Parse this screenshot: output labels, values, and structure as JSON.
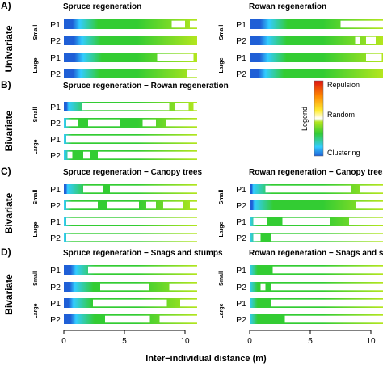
{
  "figure": {
    "xlabel": "Inter−individual distance (m)",
    "x_ticks": [
      "0",
      "5",
      "10"
    ]
  },
  "legend": {
    "title": "Legend",
    "top": "Repulsion",
    "middle": "Random",
    "bottom": "Clustering"
  },
  "colors": {
    "clustering": "#1f5fd6",
    "cyan": "#33ccff",
    "random_green": "#33cc33",
    "yellow_green": "#b4e61e",
    "yellow": "#ffee33",
    "orange": "#ff8800",
    "repulsion": "#dd1111"
  },
  "chart_data": {
    "type": "heatmap",
    "x_range": [
      0,
      11
    ],
    "color_scale": [
      "Clustering",
      "Random",
      "Repulsion"
    ],
    "panels": [
      {
        "section": "A)",
        "method": "Univariate",
        "title": "Spruce regeneration",
        "col": 0,
        "rows": [
          {
            "size": "Small",
            "plot": "P1",
            "clustering_end": 1.3,
            "white": [
              [
                8.9,
                10.0
              ],
              [
                10.4,
                11.0
              ]
            ]
          },
          {
            "size": "Small",
            "plot": "P2",
            "clustering_end": 1.5,
            "white": []
          },
          {
            "size": "Large",
            "plot": "P1",
            "clustering_end": 1.6,
            "white": [
              [
                7.7,
                10.7
              ]
            ]
          },
          {
            "size": "Large",
            "plot": "P2",
            "clustering_end": 1.4,
            "white": [
              [
                10.2,
                11.0
              ]
            ]
          }
        ]
      },
      {
        "section": "A)",
        "method": "Univariate",
        "title": "Rowan regeneration",
        "col": 1,
        "rows": [
          {
            "size": "Small",
            "plot": "P1",
            "clustering_end": 1.6,
            "white": [
              [
                7.5,
                11.0
              ]
            ]
          },
          {
            "size": "Small",
            "plot": "P2",
            "clustering_end": 1.5,
            "white": [
              [
                8.7,
                9.1
              ],
              [
                9.6,
                10.4
              ]
            ]
          },
          {
            "size": "Large",
            "plot": "P1",
            "clustering_end": 1.5,
            "white": [
              [
                9.6,
                10.9
              ]
            ]
          },
          {
            "size": "Large",
            "plot": "P2",
            "clustering_end": 1.3,
            "white": []
          }
        ]
      },
      {
        "section": "B)",
        "method": "Bivariate",
        "title": "Spruce regeneration − Rowan regeneration",
        "col": 0,
        "rows": [
          {
            "size": "Small",
            "plot": "P1",
            "clustering_end": 0.4,
            "white": [
              [
                1.5,
                8.7
              ],
              [
                9.2,
                10.3
              ],
              [
                10.7,
                11.0
              ]
            ]
          },
          {
            "size": "Small",
            "plot": "P2",
            "clustering_end": 0.0,
            "white": [
              [
                0.2,
                1.2
              ],
              [
                2.0,
                4.6
              ],
              [
                6.5,
                7.6
              ],
              [
                8.4,
                11.0
              ]
            ]
          },
          {
            "size": "Large",
            "plot": "P1",
            "clustering_end": 0.0,
            "white": [
              [
                0.2,
                11.0
              ]
            ]
          },
          {
            "size": "Large",
            "plot": "P2",
            "clustering_end": 0.0,
            "white": [
              [
                0.3,
                0.7
              ],
              [
                1.6,
                2.2
              ],
              [
                2.8,
                11.0
              ]
            ]
          }
        ]
      },
      {
        "section": "C)",
        "method": "Bivariate",
        "title": "Spruce regeneration − Canopy trees",
        "col": 0,
        "rows": [
          {
            "size": "Small",
            "plot": "P1",
            "clustering_end": 0.3,
            "white": [
              [
                1.6,
                3.2
              ],
              [
                3.8,
                11.0
              ]
            ]
          },
          {
            "size": "Small",
            "plot": "P2",
            "clustering_end": 0.0,
            "white": [
              [
                0.2,
                2.8
              ],
              [
                3.6,
                6.2
              ],
              [
                6.8,
                7.6
              ],
              [
                8.2,
                9.8
              ],
              [
                10.4,
                11.0
              ]
            ]
          },
          {
            "size": "Large",
            "plot": "P1",
            "clustering_end": 0.0,
            "white": [
              [
                0.2,
                11.0
              ]
            ]
          },
          {
            "size": "Large",
            "plot": "P2",
            "clustering_end": 0.0,
            "white": [
              [
                0.2,
                11.0
              ]
            ]
          }
        ]
      },
      {
        "section": "C)",
        "method": "Bivariate",
        "title": "Rowan regeneration − Canopy trees",
        "col": 1,
        "rows": [
          {
            "size": "Small",
            "plot": "P1",
            "clustering_end": 0.3,
            "white": [
              [
                1.3,
                8.4
              ],
              [
                9.1,
                11.0
              ]
            ]
          },
          {
            "size": "Small",
            "plot": "P2",
            "clustering_end": 0.4,
            "white": [
              [
                8.8,
                11.0
              ]
            ]
          },
          {
            "size": "Large",
            "plot": "P1",
            "clustering_end": 0.0,
            "white": [
              [
                0.3,
                1.4
              ],
              [
                2.7,
                6.6
              ],
              [
                8.2,
                11.0
              ]
            ]
          },
          {
            "size": "Large",
            "plot": "P2",
            "clustering_end": 0.0,
            "white": [
              [
                0.3,
                0.9
              ],
              [
                1.8,
                11.0
              ]
            ]
          }
        ]
      },
      {
        "section": "D)",
        "method": "Bivariate",
        "title": "Spruce regeneration − Snags and stumps",
        "col": 0,
        "rows": [
          {
            "size": "Small",
            "plot": "P1",
            "clustering_end": 1.0,
            "white": [
              [
                2.0,
                11.0
              ]
            ]
          },
          {
            "size": "Small",
            "plot": "P2",
            "clustering_end": 0.9,
            "white": [
              [
                3.0,
                7.0
              ],
              [
                8.7,
                11.0
              ]
            ]
          },
          {
            "size": "Large",
            "plot": "P1",
            "clustering_end": 0.8,
            "white": [
              [
                2.4,
                8.5
              ],
              [
                9.6,
                11.0
              ]
            ]
          },
          {
            "size": "Large",
            "plot": "P2",
            "clustering_end": 1.0,
            "white": [
              [
                3.4,
                7.1
              ],
              [
                7.9,
                11.0
              ]
            ]
          }
        ]
      },
      {
        "section": "D)",
        "method": "Bivariate",
        "title": "Rowan regeneration − Snags and stumps",
        "col": 1,
        "rows": [
          {
            "size": "Small",
            "plot": "P1",
            "clustering_end": 0.0,
            "white": [
              [
                1.9,
                11.0
              ]
            ]
          },
          {
            "size": "Small",
            "plot": "P2",
            "clustering_end": 0.0,
            "white": [
              [
                0.9,
                1.3
              ],
              [
                1.8,
                11.0
              ]
            ]
          },
          {
            "size": "Large",
            "plot": "P1",
            "clustering_end": 0.0,
            "white": [
              [
                1.8,
                11.0
              ]
            ]
          },
          {
            "size": "Large",
            "plot": "P2",
            "clustering_end": 0.0,
            "white": [
              [
                2.9,
                11.0
              ]
            ]
          }
        ]
      }
    ]
  }
}
